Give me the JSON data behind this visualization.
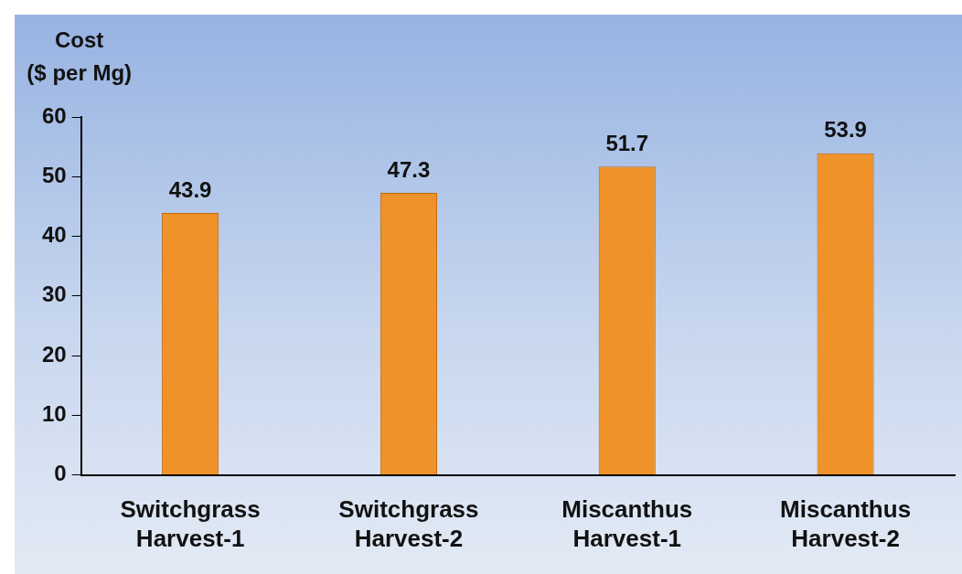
{
  "chart_data": {
    "type": "bar",
    "ylabel": "Cost ($ per Mg)",
    "categories": [
      "Switchgrass Harvest-1",
      "Switchgrass Harvest-2",
      "Miscanthus Harvest-1",
      "Miscanthus Harvest-2"
    ],
    "values": [
      43.9,
      47.3,
      51.7,
      53.9
    ],
    "color": "#f0922a",
    "ylim": [
      0,
      60
    ],
    "yticks": [
      0,
      10,
      20,
      30,
      40,
      50,
      60
    ],
    "grid": false,
    "legend": false,
    "data_labels": true
  }
}
